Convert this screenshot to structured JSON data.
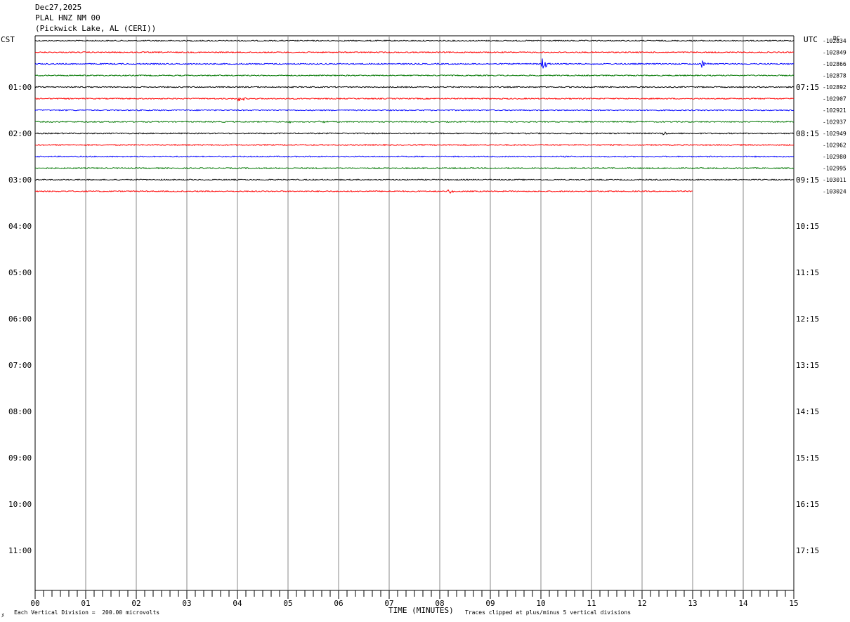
{
  "header": {
    "date": "Dec27,2025",
    "station": "PLAL HNZ NM 00",
    "location": "(Pickwick Lake, AL (CERI))"
  },
  "left_tz": "CST",
  "right_tz": "UTC",
  "dc_label": "DC",
  "footer": {
    "scale_note": "Each Vertical Division =  200.00 microvolts",
    "clip_note": "Traces clipped at plus/minus 5 vertical divisions",
    "corner_mark": "ﾒ"
  },
  "chart_data": {
    "type": "line",
    "title": "PLAL HNZ NM 00",
    "xlabel": "TIME (MINUTES)",
    "ylabel": "",
    "xlim": [
      0,
      15
    ],
    "x_ticks": [
      "00",
      "01",
      "02",
      "03",
      "04",
      "05",
      "06",
      "07",
      "08",
      "09",
      "10",
      "11",
      "12",
      "13",
      "14",
      "15"
    ],
    "grid": "vertical lines every minute",
    "trace_colors": [
      "#000000",
      "#ff0000",
      "#0000ff",
      "#007700"
    ],
    "left_hour_labels": [
      "01:00",
      "02:00",
      "03:00",
      "04:00",
      "05:00",
      "06:00",
      "07:00",
      "08:00",
      "09:00",
      "10:00",
      "11:00"
    ],
    "right_hour_labels": [
      "07:15",
      "08:15",
      "09:15",
      "10:15",
      "11:15",
      "12:15",
      "13:15",
      "14:15",
      "15:15",
      "16:15",
      "17:15"
    ],
    "traces": [
      {
        "dc": "-102834",
        "end_minute": 15,
        "events": []
      },
      {
        "dc": "-102849",
        "end_minute": 15,
        "events": []
      },
      {
        "dc": "-102866",
        "end_minute": 15,
        "events": [
          {
            "minute": 10.05,
            "amplitude": 10
          },
          {
            "minute": 13.2,
            "amplitude": 5
          }
        ]
      },
      {
        "dc": "-102878",
        "end_minute": 15,
        "events": []
      },
      {
        "dc": "-102892",
        "end_minute": 15,
        "events": []
      },
      {
        "dc": "-102907",
        "end_minute": 15,
        "events": [
          {
            "minute": 4.05,
            "amplitude": 4
          }
        ]
      },
      {
        "dc": "-102921",
        "end_minute": 15,
        "events": []
      },
      {
        "dc": "-102937",
        "end_minute": 15,
        "events": [
          {
            "minute": 5.05,
            "amplitude": 2
          },
          {
            "minute": 5.65,
            "amplitude": 2
          }
        ]
      },
      {
        "dc": "-102949",
        "end_minute": 15,
        "events": [
          {
            "minute": 12.45,
            "amplitude": 2
          }
        ]
      },
      {
        "dc": "-102962",
        "end_minute": 15,
        "events": []
      },
      {
        "dc": "-102980",
        "end_minute": 15,
        "events": []
      },
      {
        "dc": "-102995",
        "end_minute": 15,
        "events": []
      },
      {
        "dc": "-103011",
        "end_minute": 15,
        "events": []
      },
      {
        "dc": "-103024",
        "end_minute": 13,
        "events": [
          {
            "minute": 8.2,
            "amplitude": 3
          }
        ]
      }
    ]
  }
}
